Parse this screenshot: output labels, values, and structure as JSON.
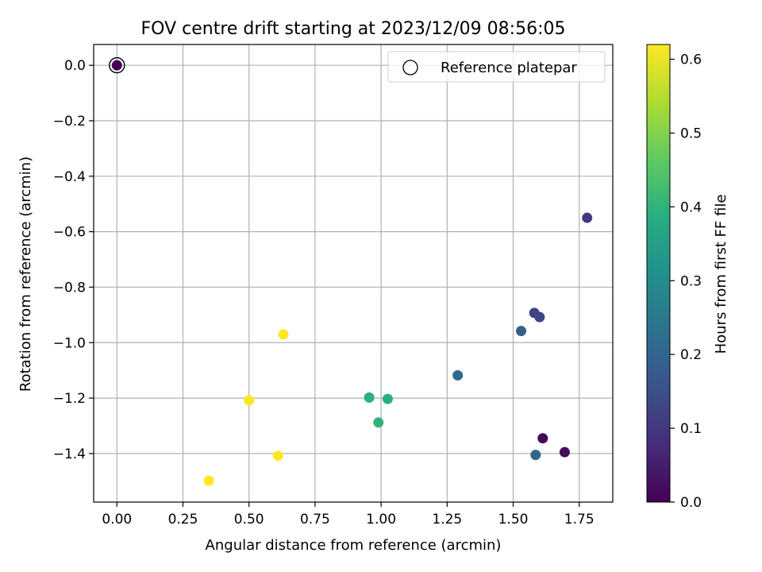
{
  "chart_data": {
    "type": "scatter",
    "title": "FOV centre drift starting at 2023/12/09 08:56:05",
    "xlabel": "Angular distance from reference (arcmin)",
    "ylabel": "Rotation from reference (arcmin)",
    "xlim": [
      -0.088,
      1.877
    ],
    "ylim": [
      -1.575,
      0.075
    ],
    "xticks": [
      "0.00",
      "0.25",
      "0.50",
      "0.75",
      "1.00",
      "1.25",
      "1.50",
      "1.75"
    ],
    "xtick_values": [
      0,
      0.25,
      0.5,
      0.75,
      1.0,
      1.25,
      1.5,
      1.75
    ],
    "yticks": [
      "0.0",
      "−0.2",
      "−0.4",
      "−0.6",
      "−0.8",
      "−1.0",
      "−1.2",
      "−1.4"
    ],
    "ytick_values": [
      0,
      -0.2,
      -0.4,
      -0.6,
      -0.8,
      -1.0,
      -1.2,
      -1.4
    ],
    "grid": true,
    "legend": {
      "position": "top-right",
      "entries": [
        "Reference platepar"
      ]
    },
    "reference_point": {
      "x": 0.0,
      "y": 0.0
    },
    "colorbar": {
      "label": "Hours from first FF file",
      "range": [
        0.0,
        0.62
      ],
      "ticks": [
        "0.0",
        "0.1",
        "0.2",
        "0.3",
        "0.4",
        "0.5",
        "0.6"
      ],
      "tick_values": [
        0.0,
        0.1,
        0.2,
        0.3,
        0.4,
        0.5,
        0.6
      ],
      "colormap": "viridis"
    },
    "points": [
      {
        "x": 0.0,
        "y": 0.0,
        "t": 0.0
      },
      {
        "x": 1.612,
        "y": -1.345,
        "t": 0.01
      },
      {
        "x": 1.695,
        "y": -1.395,
        "t": 0.02
      },
      {
        "x": 1.78,
        "y": -0.55,
        "t": 0.1
      },
      {
        "x": 1.58,
        "y": -0.893,
        "t": 0.12
      },
      {
        "x": 1.6,
        "y": -0.908,
        "t": 0.13
      },
      {
        "x": 1.53,
        "y": -0.958,
        "t": 0.19
      },
      {
        "x": 1.585,
        "y": -1.405,
        "t": 0.2
      },
      {
        "x": 1.29,
        "y": -1.118,
        "t": 0.21
      },
      {
        "x": 0.955,
        "y": -1.198,
        "t": 0.39
      },
      {
        "x": 1.025,
        "y": -1.203,
        "t": 0.39
      },
      {
        "x": 0.99,
        "y": -1.288,
        "t": 0.4
      },
      {
        "x": 0.63,
        "y": -0.97,
        "t": 0.62
      },
      {
        "x": 0.5,
        "y": -1.208,
        "t": 0.62
      },
      {
        "x": 0.61,
        "y": -1.408,
        "t": 0.62
      },
      {
        "x": 0.348,
        "y": -1.498,
        "t": 0.62
      }
    ]
  }
}
